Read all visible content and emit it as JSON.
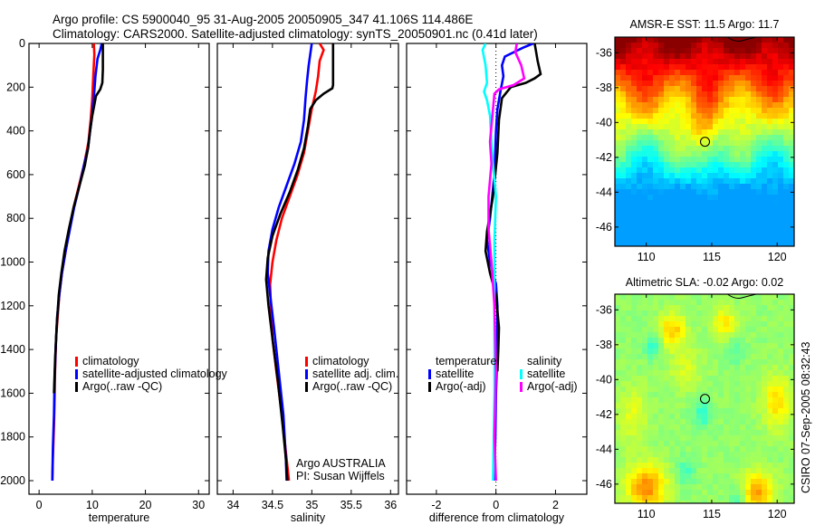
{
  "header": {
    "line1": "Argo profile: CS 5900040_95 31-Aug-2005 20050905_347 41.106S 114.486E",
    "line2": "Climatology: CARS2000. Satellite-adjusted climatology: synTS_20050901.nc (0.41d later)"
  },
  "footer_stamp": "CSIRO 07-Sep-2005 08:32:43",
  "colors": {
    "climatology": "#ff0000",
    "satellite": "#0000ff",
    "argo": "#000000",
    "salinity_satellite": "#00ffff",
    "salinity_argo": "#ff00ff"
  },
  "chart_data": [
    {
      "id": "temperature",
      "type": "line",
      "xlabel": "temperature",
      "ylabel": "",
      "xlim": [
        -1.9,
        32.0
      ],
      "ylim": [
        2062,
        0
      ],
      "xticks": [
        "0",
        "10",
        "20",
        "30"
      ],
      "xtick_values": [
        0,
        10,
        20,
        30
      ],
      "yticks": [
        "0",
        "200",
        "400",
        "600",
        "800",
        "1000",
        "1200",
        "1400",
        "1600",
        "1800",
        "2000"
      ],
      "ytick_values": [
        0,
        200,
        400,
        600,
        800,
        1000,
        1200,
        1400,
        1600,
        1800,
        2000
      ],
      "legend": [
        "climatology",
        "satellite-adjusted climatology",
        "Argo(..raw -QC)"
      ],
      "series": [
        {
          "name": "climatology",
          "color": "#ff0000",
          "x": [
            10.3,
            10.4,
            10.2,
            10.0,
            9.7,
            9.3,
            8.5,
            7.5,
            6.5,
            5.7,
            5.0,
            4.3,
            3.8,
            3.5,
            3.2,
            3.0,
            2.9,
            2.8,
            2.6,
            2.5
          ],
          "y": [
            0,
            50,
            150,
            250,
            350,
            450,
            550,
            650,
            750,
            850,
            950,
            1050,
            1150,
            1250,
            1350,
            1500,
            1650,
            1750,
            1900,
            2000
          ]
        },
        {
          "name": "satellite-adjusted climatology",
          "color": "#0000ff",
          "x": [
            11.8,
            11.5,
            11.0,
            10.6,
            10.3,
            10.0,
            9.6,
            9.2,
            8.5,
            7.6,
            6.6,
            5.8,
            5.0,
            4.3,
            3.8,
            3.4,
            3.1,
            2.9,
            2.8,
            2.6,
            2.5
          ],
          "y": [
            0,
            30,
            70,
            150,
            250,
            320,
            400,
            480,
            550,
            650,
            750,
            850,
            950,
            1050,
            1150,
            1250,
            1400,
            1550,
            1700,
            1850,
            2000
          ]
        },
        {
          "name": "Argo(..raw -QC)",
          "color": "#000000",
          "x": [
            12.0,
            12.0,
            12.0,
            11.9,
            11.5,
            10.7,
            10.4,
            10.0,
            9.6,
            9.2,
            8.6,
            7.6,
            6.5,
            5.6,
            4.8,
            4.2,
            3.7,
            3.3,
            3.0,
            2.8
          ],
          "y": [
            0,
            50,
            120,
            180,
            210,
            240,
            280,
            330,
            400,
            480,
            560,
            650,
            750,
            850,
            950,
            1050,
            1150,
            1300,
            1450,
            1600
          ]
        }
      ]
    },
    {
      "id": "salinity",
      "type": "line",
      "xlabel": "salinity",
      "xlim": [
        33.8,
        36.1
      ],
      "ylim": [
        2062,
        0
      ],
      "xticks": [
        "34",
        "34.5",
        "35",
        "35.5",
        "36"
      ],
      "xtick_values": [
        34,
        34.5,
        35,
        35.5,
        36
      ],
      "legend": [
        "climatology",
        "satellite adj. clim.",
        "Argo(..raw -QC)"
      ],
      "annotation": [
        "Argo AUSTRALIA",
        "PI: Susan Wijffels"
      ],
      "series": [
        {
          "name": "climatology",
          "color": "#ff0000",
          "x": [
            35.1,
            35.15,
            35.1,
            35.08,
            35.05,
            35.0,
            34.95,
            34.9,
            34.82,
            34.72,
            34.62,
            34.55,
            34.5,
            34.47,
            34.48,
            34.5,
            34.55,
            34.62,
            34.68,
            34.71
          ],
          "y": [
            0,
            30,
            80,
            150,
            220,
            300,
            400,
            500,
            600,
            700,
            800,
            900,
            1000,
            1100,
            1200,
            1350,
            1500,
            1700,
            1900,
            2000
          ]
        },
        {
          "name": "satellite adj. clim.",
          "color": "#0000ff",
          "x": [
            35.0,
            34.98,
            34.96,
            34.94,
            34.92,
            34.9,
            34.86,
            34.78,
            34.68,
            34.58,
            34.5,
            34.45,
            34.44,
            34.47,
            34.52,
            34.58,
            34.64,
            34.67,
            34.68
          ],
          "y": [
            0,
            50,
            100,
            170,
            250,
            350,
            450,
            550,
            650,
            750,
            850,
            950,
            1050,
            1150,
            1300,
            1500,
            1700,
            1900,
            2000
          ]
        },
        {
          "name": "Argo(..raw -QC)",
          "color": "#000000",
          "x": [
            35.27,
            35.27,
            35.27,
            35.26,
            35.15,
            35.05,
            34.98,
            34.95,
            34.9,
            34.82,
            34.72,
            34.6,
            34.5,
            34.44,
            34.42,
            34.45,
            34.5,
            34.57,
            34.63,
            34.67,
            34.69
          ],
          "y": [
            0,
            100,
            190,
            205,
            230,
            260,
            300,
            380,
            480,
            580,
            680,
            780,
            880,
            980,
            1080,
            1200,
            1350,
            1550,
            1750,
            1900,
            2000
          ]
        }
      ]
    },
    {
      "id": "difference",
      "type": "line",
      "xlabel": "difference from climatology",
      "xlim": [
        -3.0,
        3.05
      ],
      "ylim": [
        2062,
        0
      ],
      "xticks": [
        "-2",
        "0",
        "2"
      ],
      "xtick_values": [
        -2,
        0,
        2
      ],
      "zero_line": true,
      "legend_groups": [
        {
          "title": "temperature",
          "items": [
            "satellite",
            "Argo(-adj)"
          ]
        },
        {
          "title": "salinity",
          "items": [
            "satellite",
            "Argo(-adj)"
          ]
        }
      ],
      "series": [
        {
          "name": "temperature satellite",
          "color": "#0000ff",
          "x": [
            1.25,
            0.9,
            0.3,
            0.2,
            0.25,
            0.15,
            0.05,
            0.0,
            -0.05,
            -0.2,
            -0.3,
            -0.2,
            0.0,
            0.05,
            0.05,
            0.0,
            -0.02,
            -0.05
          ],
          "y": [
            0,
            20,
            60,
            100,
            150,
            220,
            300,
            400,
            600,
            800,
            900,
            1000,
            1100,
            1200,
            1400,
            1600,
            1800,
            2000
          ]
        },
        {
          "name": "temperature Argo(-adj)",
          "color": "#000000",
          "x": [
            1.3,
            1.35,
            1.4,
            1.5,
            1.3,
            1.0,
            0.5,
            0.2,
            0.1,
            0.05,
            -0.1,
            -0.3,
            -0.35,
            -0.2,
            0.0,
            0.1,
            0.08,
            0.05
          ],
          "y": [
            0,
            40,
            80,
            140,
            160,
            180,
            200,
            250,
            350,
            500,
            700,
            860,
            950,
            1050,
            1150,
            1300,
            1400,
            1500
          ]
        },
        {
          "name": "salinity satellite",
          "color": "#00ffff",
          "x": [
            -0.35,
            -0.45,
            -0.35,
            -0.3,
            -0.4,
            -0.3,
            -0.2,
            -0.15,
            -0.1,
            0.0,
            -0.05,
            -0.05,
            -0.05,
            -0.05,
            -0.08,
            -0.1
          ],
          "y": [
            0,
            30,
            100,
            180,
            220,
            260,
            330,
            450,
            550,
            700,
            900,
            1100,
            1300,
            1600,
            1850,
            2000
          ]
        },
        {
          "name": "salinity Argo(-adj)",
          "color": "#ff00ff",
          "x": [
            0.7,
            0.65,
            0.85,
            0.95,
            0.6,
            0.1,
            -0.05,
            -0.1,
            -0.2,
            -0.15,
            -0.25,
            -0.25,
            -0.15,
            -0.05,
            0.0,
            -0.05,
            0.0
          ],
          "y": [
            0,
            40,
            100,
            160,
            190,
            210,
            230,
            300,
            450,
            550,
            700,
            850,
            1000,
            1200,
            1500,
            1800,
            2000
          ]
        }
      ]
    },
    {
      "id": "sst_map",
      "type": "heatmap",
      "title": "AMSR-E SST: 11.5 Argo: 11.7",
      "lon_range": [
        107.6,
        121.3
      ],
      "lat_range": [
        -47.1,
        -35.1
      ],
      "xticks": [
        "110",
        "115",
        "120"
      ],
      "xtick_values": [
        110,
        115,
        120
      ],
      "yticks": [
        "-36",
        "-38",
        "-40",
        "-42",
        "-44",
        "-46"
      ],
      "ytick_values": [
        -36,
        -38,
        -40,
        -42,
        -44,
        -46
      ],
      "marker": {
        "lon": 114.486,
        "lat": -41.106
      },
      "pattern": "warm (red) north of -38, yellow band -38 to -40.5, green -41 to -44, cyan/blue toward -47"
    },
    {
      "id": "sla_map",
      "type": "heatmap",
      "title": "Altimetric SLA: -0.02 Argo: 0.02",
      "lon_range": [
        107.6,
        121.3
      ],
      "lat_range": [
        -47.1,
        -35.1
      ],
      "xticks": [
        "110",
        "115",
        "120"
      ],
      "xtick_values": [
        110,
        115,
        120
      ],
      "yticks": [
        "-36",
        "-38",
        "-40",
        "-42",
        "-44",
        "-46"
      ],
      "ytick_values": [
        -36,
        -38,
        -40,
        -42,
        -44,
        -46
      ],
      "marker": {
        "lon": 114.486,
        "lat": -41.106
      },
      "pattern": "mostly green with yellow/orange eddies near (110,-46), (112,-37), (118.5,-46.5), (120,-41)"
    }
  ]
}
